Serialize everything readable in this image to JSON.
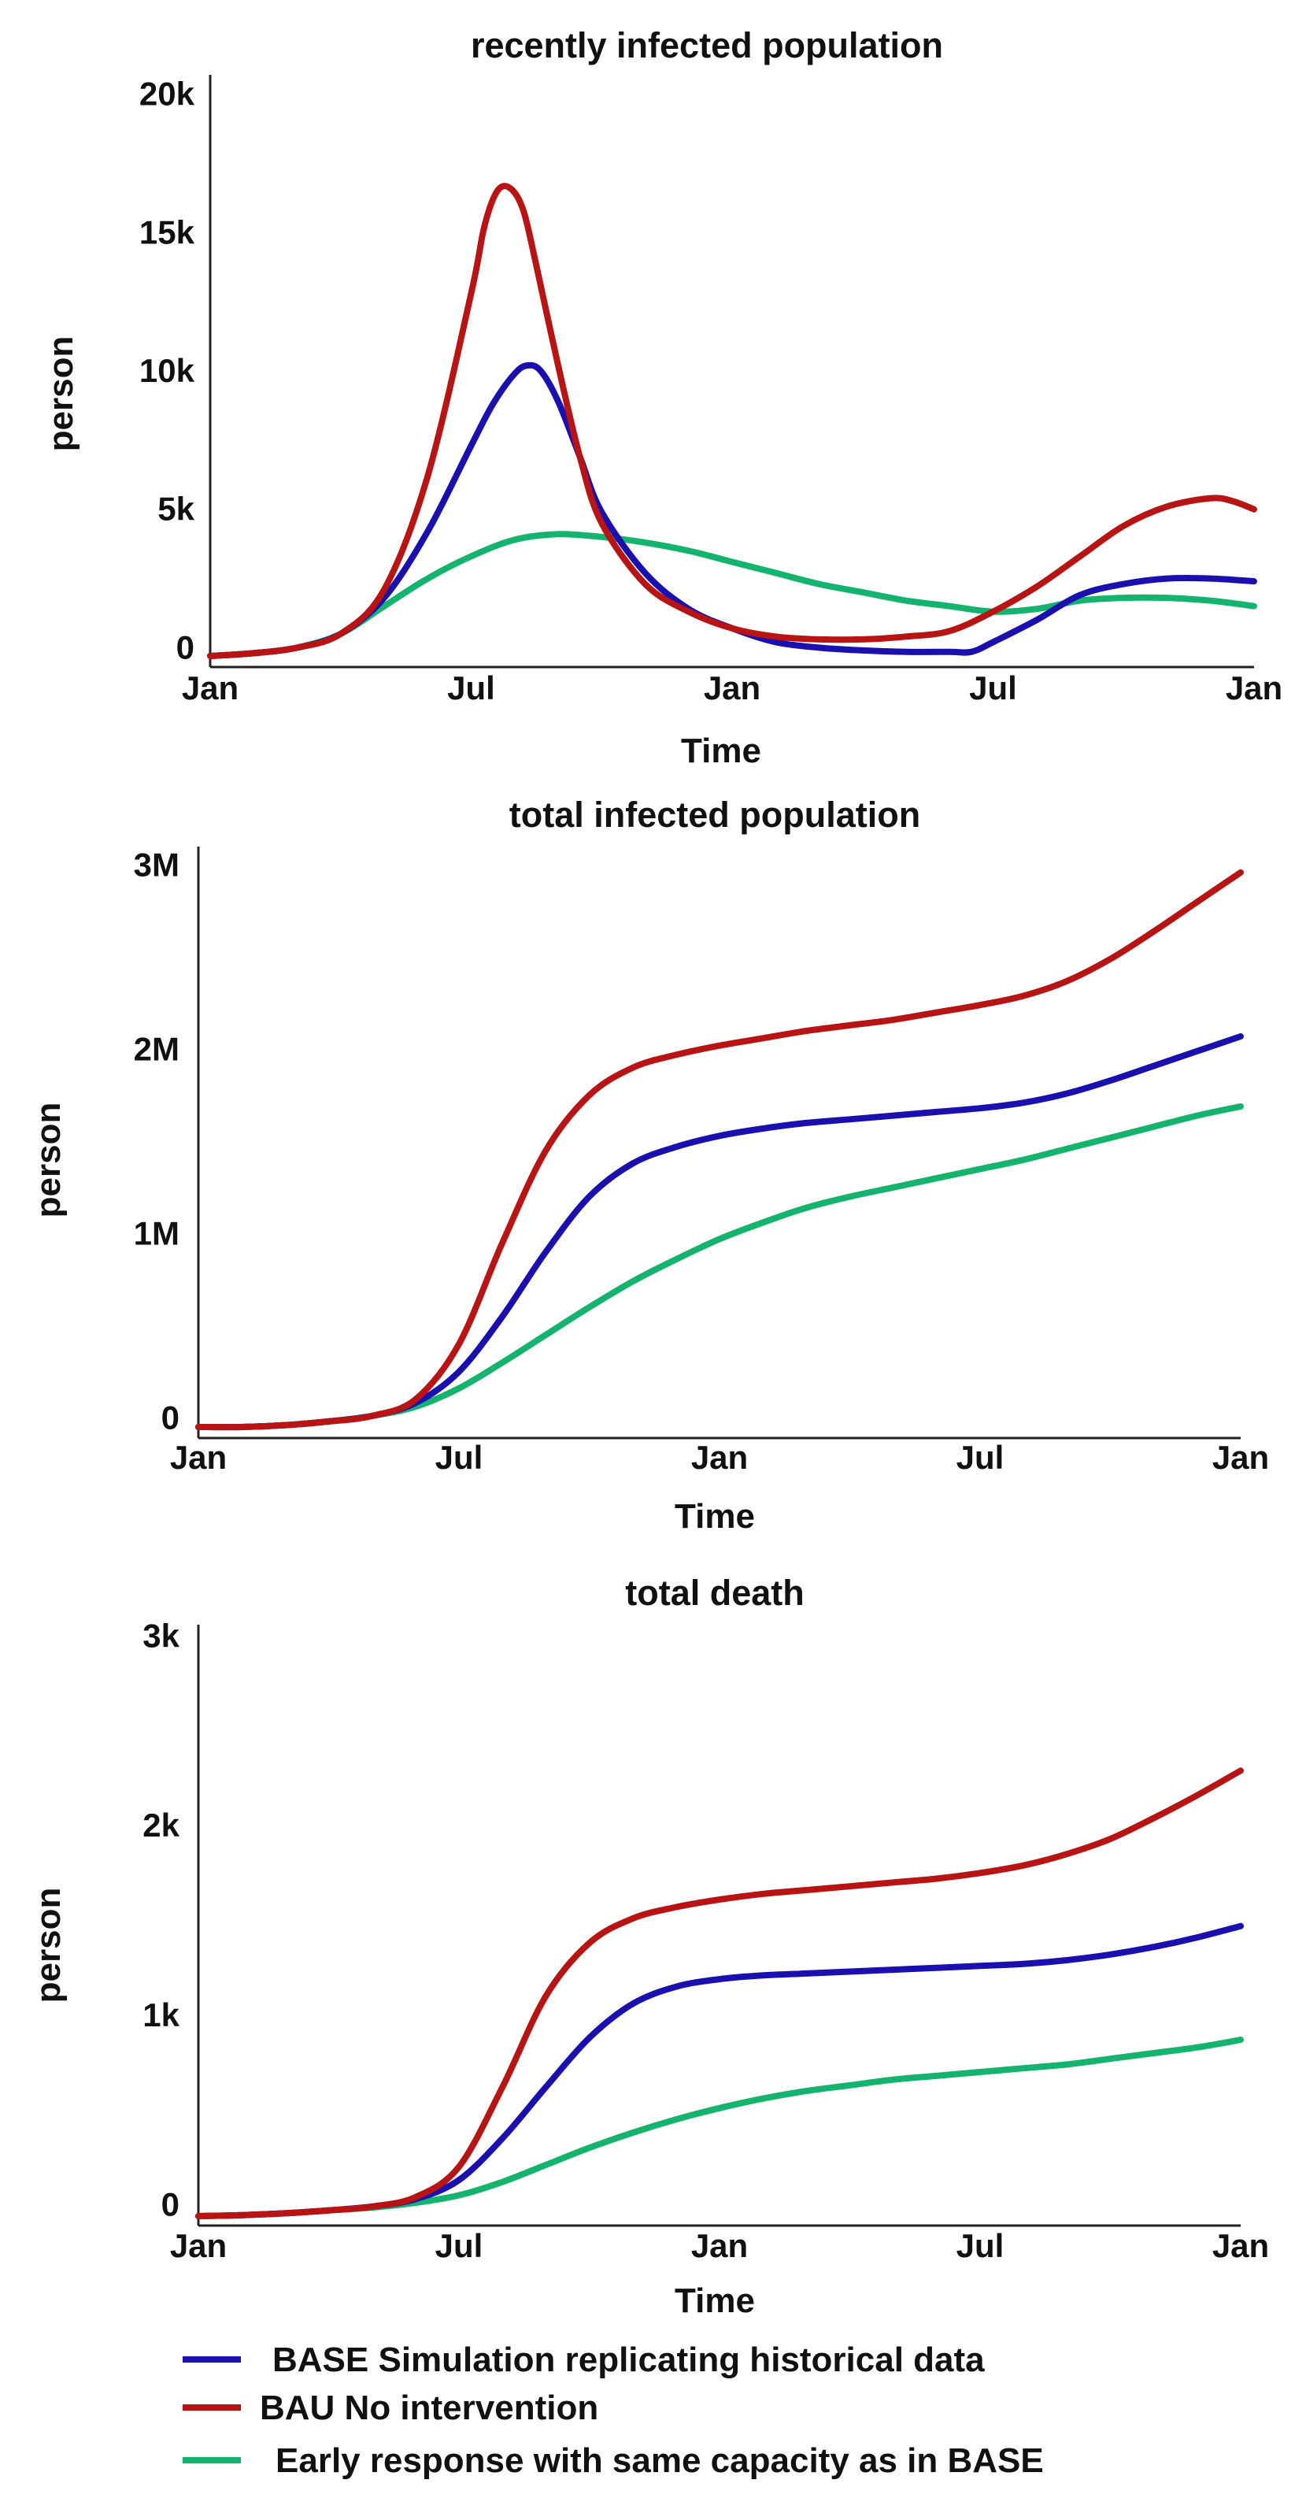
{
  "colors": {
    "base": "#1a10b0",
    "bau": "#b81414",
    "early": "#14b46e"
  },
  "chart_data": [
    {
      "type": "line",
      "title": "recently infected population",
      "xlabel": "Time",
      "ylabel": "person",
      "x_ticks": [
        "Jan",
        "Jul",
        "Jan",
        "Jul",
        "Jan"
      ],
      "x_tick_months": [
        0,
        6,
        12,
        18,
        24
      ],
      "xlim": [
        0,
        24
      ],
      "y_ticks": [
        {
          "value": 0,
          "label": "0"
        },
        {
          "value": 5000,
          "label": "5k"
        },
        {
          "value": 10000,
          "label": "10k"
        },
        {
          "value": 15000,
          "label": "15k"
        },
        {
          "value": 20000,
          "label": "20k"
        }
      ],
      "ylim": [
        -700,
        20700
      ],
      "series": [
        {
          "name": "BASE Simulation replicating historical data",
          "color_key": "base",
          "x": [
            0,
            1,
            2,
            3,
            4,
            5,
            6,
            6.5,
            7,
            7.3,
            7.6,
            8,
            8.5,
            9,
            10,
            11,
            12,
            13,
            14,
            15,
            16,
            17,
            17.5,
            18,
            19,
            20,
            21,
            22,
            23,
            24
          ],
          "values": [
            -300,
            -200,
            0,
            500,
            1800,
            4200,
            7300,
            8800,
            9900,
            10200,
            10000,
            8900,
            6900,
            4900,
            2700,
            1400,
            700,
            200,
            0,
            -100,
            -150,
            -150,
            -150,
            200,
            1000,
            1900,
            2300,
            2500,
            2500,
            2400
          ]
        },
        {
          "name": "BAU No intervention",
          "color_key": "bau",
          "x": [
            0,
            1,
            2,
            3,
            4,
            5,
            6,
            6.3,
            6.6,
            6.9,
            7.2,
            7.5,
            8,
            8.5,
            9,
            10,
            11,
            12,
            13,
            14,
            15,
            16,
            17,
            18,
            19,
            20,
            21,
            22,
            23,
            23.5,
            24
          ],
          "values": [
            -300,
            -200,
            0,
            500,
            2100,
            6200,
            12800,
            15200,
            16500,
            16600,
            15800,
            13800,
            10200,
            6900,
            4500,
            2300,
            1300,
            700,
            400,
            300,
            300,
            400,
            600,
            1300,
            2200,
            3300,
            4400,
            5100,
            5400,
            5300,
            5000
          ]
        },
        {
          "name": "Early response with same capacity as in BASE",
          "color_key": "early",
          "x": [
            0,
            1,
            2,
            3,
            4,
            5,
            6,
            7,
            8,
            9,
            10,
            11,
            12,
            13,
            14,
            15,
            16,
            17,
            18,
            19,
            20,
            21,
            22,
            23,
            24
          ],
          "values": [
            -300,
            -200,
            0,
            500,
            1500,
            2500,
            3300,
            3900,
            4100,
            4000,
            3800,
            3500,
            3100,
            2700,
            2300,
            2000,
            1700,
            1500,
            1300,
            1400,
            1700,
            1800,
            1800,
            1700,
            1500
          ]
        }
      ]
    },
    {
      "type": "line",
      "title": "total infected population",
      "xlabel": "Time",
      "ylabel": "person",
      "x_ticks": [
        "Jan",
        "Jul",
        "Jan",
        "Jul",
        "Jan"
      ],
      "x_tick_months": [
        0,
        6,
        12,
        18,
        24
      ],
      "xlim": [
        0,
        24
      ],
      "y_ticks": [
        {
          "value": 0,
          "label": "0"
        },
        {
          "value": 1000000,
          "label": "1M"
        },
        {
          "value": 2000000,
          "label": "2M"
        },
        {
          "value": 3000000,
          "label": "3M"
        }
      ],
      "ylim": [
        -110000,
        3100000
      ],
      "series": [
        {
          "name": "BASE Simulation replicating historical data",
          "color_key": "base",
          "x": [
            0,
            1,
            2,
            3,
            4,
            5,
            6,
            7,
            8,
            9,
            10,
            11,
            12,
            13,
            14,
            15,
            16,
            17,
            18,
            19,
            20,
            21,
            22,
            23,
            24
          ],
          "values": [
            -50000,
            -50000,
            -40000,
            -20000,
            10000,
            80000,
            250000,
            550000,
            900000,
            1200000,
            1380000,
            1470000,
            1530000,
            1570000,
            1600000,
            1620000,
            1640000,
            1660000,
            1680000,
            1710000,
            1760000,
            1830000,
            1910000,
            1990000,
            2070000
          ]
        },
        {
          "name": "BAU No intervention",
          "color_key": "bau",
          "x": [
            0,
            1,
            2,
            3,
            4,
            5,
            6,
            7,
            8,
            9,
            10,
            11,
            12,
            13,
            14,
            15,
            16,
            17,
            18,
            19,
            20,
            21,
            22,
            23,
            24
          ],
          "values": [
            -50000,
            -50000,
            -40000,
            -20000,
            10000,
            100000,
            400000,
            950000,
            1450000,
            1750000,
            1900000,
            1970000,
            2020000,
            2060000,
            2100000,
            2130000,
            2160000,
            2200000,
            2240000,
            2290000,
            2370000,
            2490000,
            2640000,
            2800000,
            2960000
          ]
        },
        {
          "name": "Early response with same capacity as in BASE",
          "color_key": "early",
          "x": [
            0,
            1,
            2,
            3,
            4,
            5,
            6,
            7,
            8,
            9,
            10,
            11,
            12,
            13,
            14,
            15,
            16,
            17,
            18,
            19,
            20,
            21,
            22,
            23,
            24
          ],
          "values": [
            -50000,
            -50000,
            -40000,
            -20000,
            10000,
            60000,
            160000,
            300000,
            450000,
            600000,
            740000,
            860000,
            970000,
            1060000,
            1140000,
            1200000,
            1250000,
            1300000,
            1350000,
            1400000,
            1460000,
            1520000,
            1580000,
            1640000,
            1690000
          ]
        }
      ]
    },
    {
      "type": "line",
      "title": "total death",
      "xlabel": "Time",
      "ylabel": "person",
      "x_ticks": [
        "Jan",
        "Jul",
        "Jan",
        "Jul",
        "Jan"
      ],
      "x_tick_months": [
        0,
        6,
        12,
        18,
        24
      ],
      "xlim": [
        0,
        24
      ],
      "y_ticks": [
        {
          "value": 0,
          "label": "0"
        },
        {
          "value": 1000,
          "label": "1k"
        },
        {
          "value": 2000,
          "label": "2k"
        },
        {
          "value": 3000,
          "label": "3k"
        }
      ],
      "ylim": [
        -110,
        3060
      ],
      "series": [
        {
          "name": "BASE Simulation replicating historical data",
          "color_key": "base",
          "x": [
            0,
            1,
            2,
            3,
            4,
            5,
            6,
            7,
            8,
            9,
            10,
            11,
            12,
            13,
            14,
            15,
            16,
            17,
            18,
            19,
            20,
            21,
            22,
            23,
            24
          ],
          "values": [
            -60,
            -55,
            -45,
            -30,
            -10,
            30,
            130,
            350,
            620,
            880,
            1060,
            1150,
            1190,
            1210,
            1220,
            1230,
            1240,
            1250,
            1260,
            1270,
            1290,
            1320,
            1360,
            1410,
            1470
          ]
        },
        {
          "name": "BAU No intervention",
          "color_key": "bau",
          "x": [
            0,
            1,
            2,
            3,
            4,
            5,
            6,
            7,
            8,
            9,
            10,
            11,
            12,
            13,
            14,
            15,
            16,
            17,
            18,
            19,
            20,
            21,
            22,
            23,
            24
          ],
          "values": [
            -60,
            -55,
            -45,
            -30,
            -10,
            40,
            200,
            620,
            1100,
            1380,
            1510,
            1570,
            1610,
            1640,
            1660,
            1680,
            1700,
            1720,
            1750,
            1790,
            1850,
            1930,
            2040,
            2160,
            2290
          ]
        },
        {
          "name": "Early response with same capacity as in BASE",
          "color_key": "early",
          "x": [
            0,
            1,
            2,
            3,
            4,
            5,
            6,
            7,
            8,
            9,
            10,
            11,
            12,
            13,
            14,
            15,
            16,
            17,
            18,
            19,
            20,
            21,
            22,
            23,
            24
          ],
          "values": [
            -60,
            -55,
            -45,
            -30,
            -15,
            10,
            50,
            120,
            210,
            300,
            380,
            450,
            510,
            560,
            600,
            630,
            660,
            680,
            700,
            720,
            740,
            770,
            800,
            830,
            870
          ]
        }
      ]
    }
  ],
  "legend": [
    {
      "label": "BASE Simulation replicating historical data",
      "color_key": "base"
    },
    {
      "label": "BAU No intervention",
      "color_key": "bau"
    },
    {
      "label": "Early response with same capacity as in BASE",
      "color_key": "early"
    }
  ]
}
